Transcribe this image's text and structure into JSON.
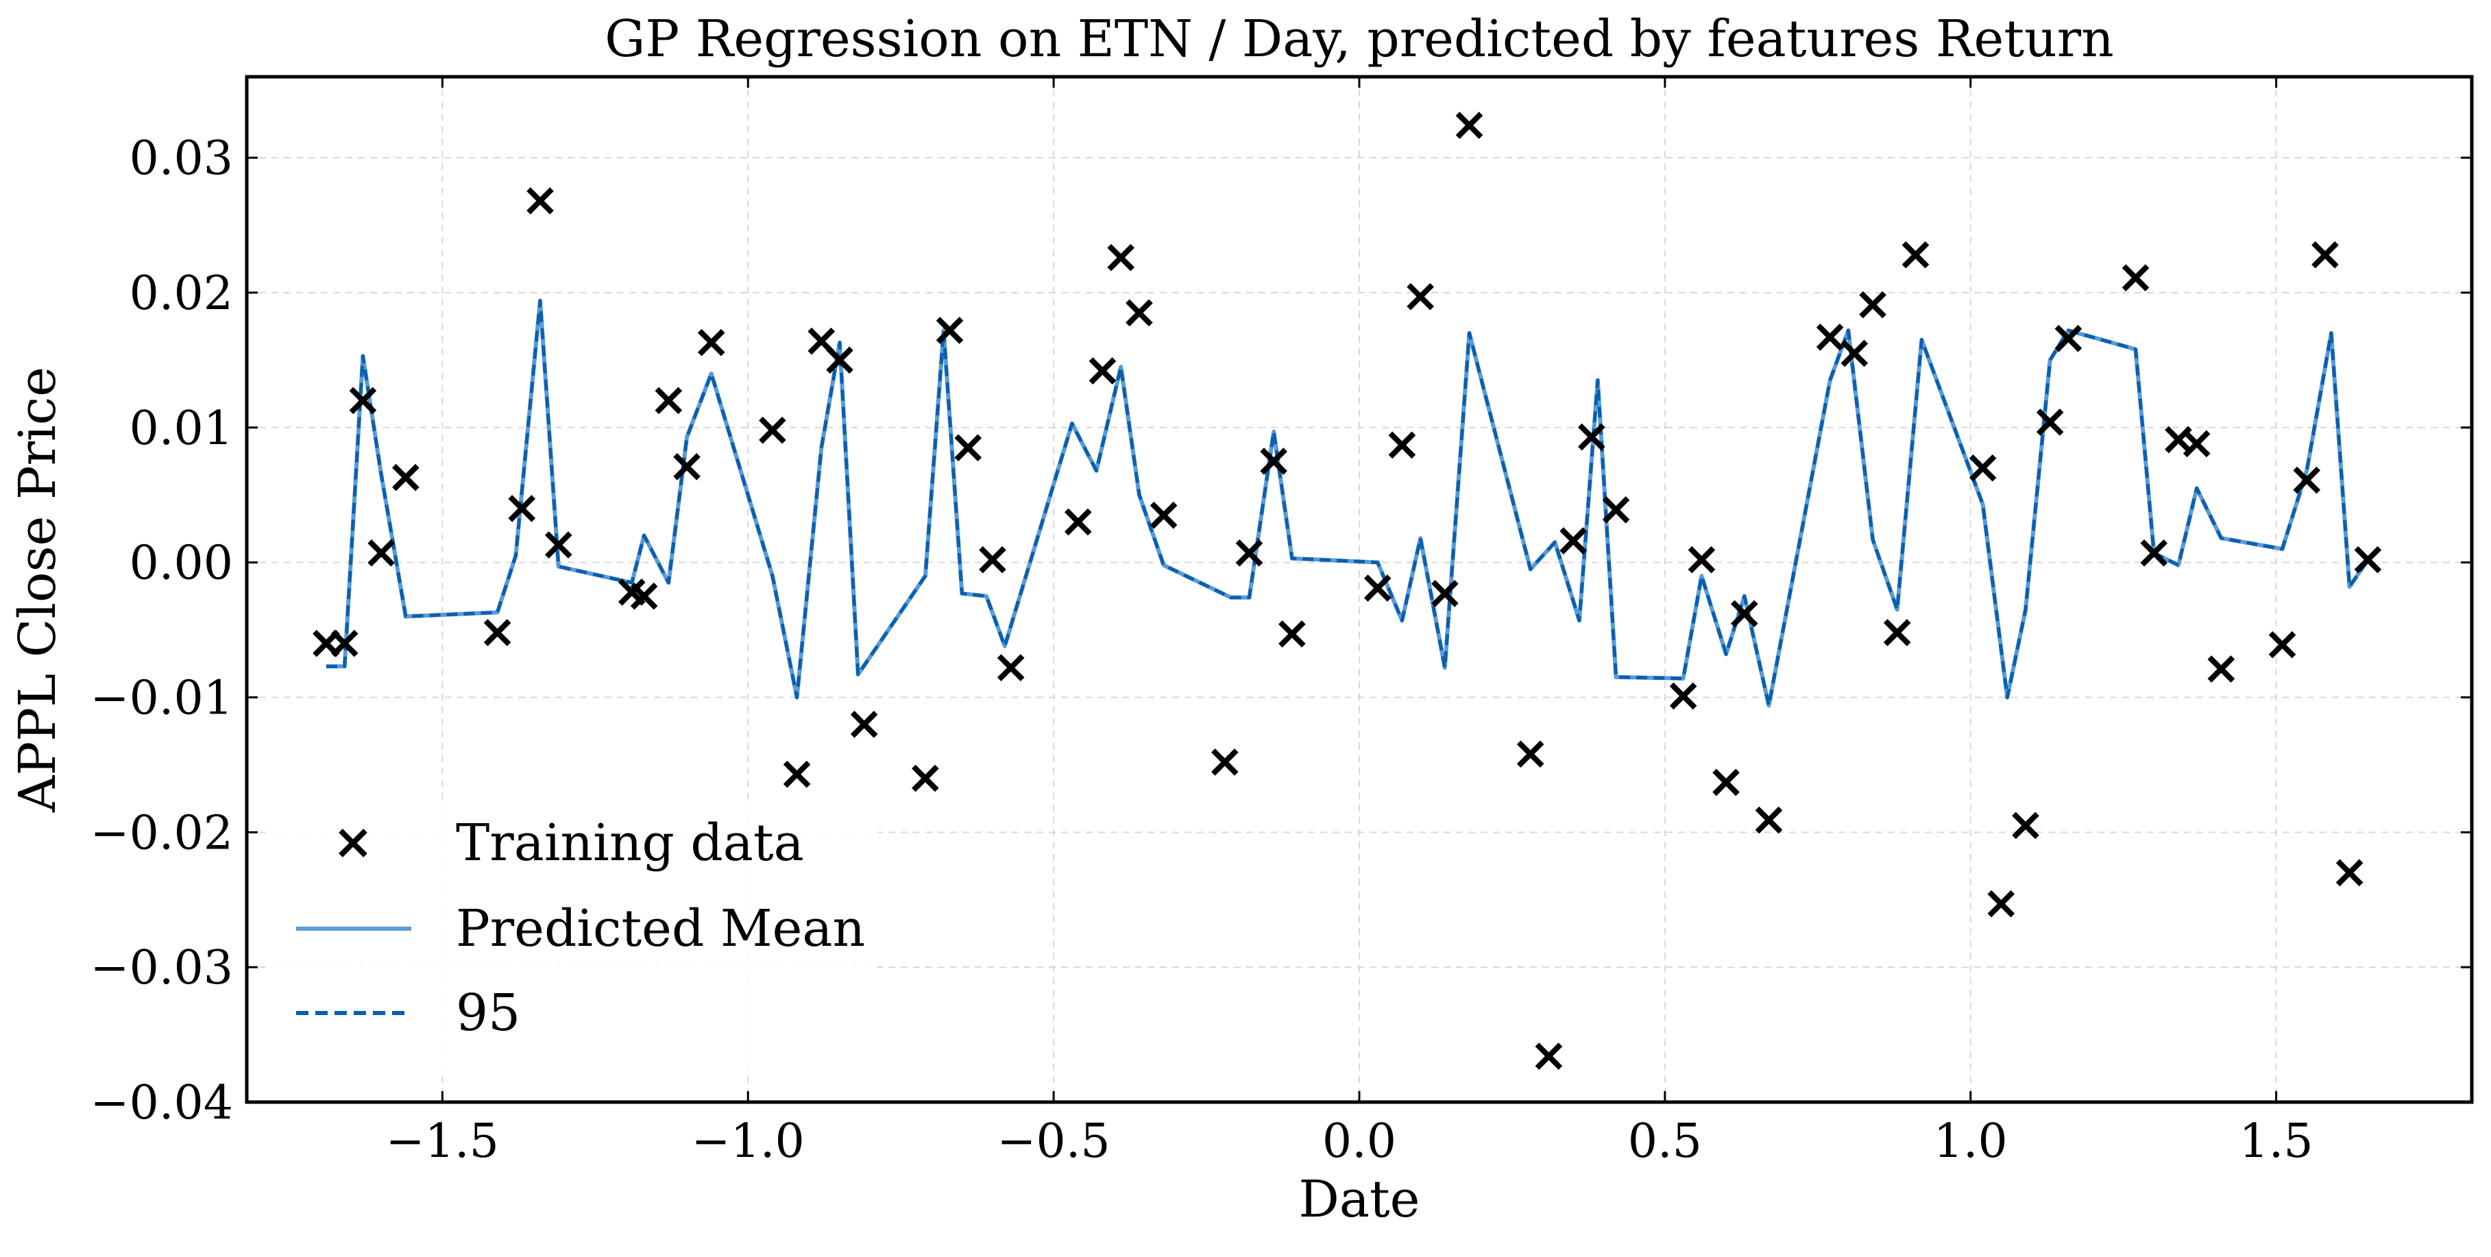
{
  "chart_data": {
    "type": "line",
    "title": "GP Regression on ETN / Day, predicted by features Return",
    "xlabel": "Date",
    "ylabel": "APPL Close Price",
    "xlim": [
      -1.82,
      1.82
    ],
    "ylim": [
      -0.04,
      0.036
    ],
    "xticks": [
      -1.5,
      -1.0,
      -0.5,
      0.0,
      0.5,
      1.0,
      1.5
    ],
    "xtick_labels": [
      "−1.5",
      "−1.0",
      "−0.5",
      "0.0",
      "0.5",
      "1.0",
      "1.5"
    ],
    "yticks": [
      -0.04,
      -0.03,
      -0.02,
      -0.01,
      0.0,
      0.01,
      0.02,
      0.03
    ],
    "ytick_labels": [
      "−0.04",
      "−0.03",
      "−0.02",
      "−0.01",
      "0.00",
      "0.01",
      "0.02",
      "0.03"
    ],
    "grid": true,
    "legend_placement": "lower-left",
    "legend": [
      {
        "label": "Training data",
        "kind": "marker"
      },
      {
        "label": "Predicted Mean",
        "kind": "line"
      },
      {
        "label": "95",
        "kind": "dashed"
      }
    ],
    "colors": {
      "mean": "#5b9bd5",
      "band": "#0a5fb0",
      "marker": "#000000"
    },
    "training_data": {
      "x": [
        -1.69,
        -1.66,
        -1.63,
        -1.6,
        -1.56,
        -1.41,
        -1.37,
        -1.34,
        -1.31,
        -1.19,
        -1.17,
        -1.13,
        -1.1,
        -1.06,
        -0.96,
        -0.92,
        -0.88,
        -0.85,
        -0.81,
        -0.71,
        -0.67,
        -0.64,
        -0.6,
        -0.57,
        -0.46,
        -0.42,
        -0.39,
        -0.36,
        -0.32,
        -0.22,
        -0.18,
        -0.14,
        -0.11,
        0.03,
        0.07,
        0.1,
        0.14,
        0.18,
        0.28,
        0.31,
        0.35,
        0.38,
        0.42,
        0.53,
        0.56,
        0.6,
        0.63,
        0.67,
        0.77,
        0.81,
        0.84,
        0.88,
        0.91,
        1.02,
        1.05,
        1.09,
        1.13,
        1.16,
        1.27,
        1.3,
        1.34,
        1.37,
        1.41,
        1.51,
        1.55,
        1.58,
        1.62,
        1.65
      ],
      "y": [
        -0.006,
        -0.006,
        0.012,
        0.0007,
        0.0063,
        -0.0052,
        0.004,
        0.0268,
        0.0013,
        -0.0022,
        -0.0025,
        0.012,
        0.0071,
        0.0163,
        0.0098,
        -0.0157,
        0.0164,
        0.015,
        -0.012,
        -0.016,
        0.0172,
        0.0085,
        0.0002,
        -0.0078,
        0.003,
        0.0142,
        0.0226,
        0.0185,
        0.0035,
        -0.0148,
        0.0007,
        0.0075,
        -0.0053,
        -0.0019,
        0.0087,
        0.0197,
        -0.0023,
        0.0324,
        -0.0142,
        -0.0366,
        0.0016,
        0.0093,
        0.0039,
        -0.0099,
        0.0002,
        -0.0163,
        -0.0038,
        -0.0191,
        0.0167,
        0.0155,
        0.0191,
        -0.0052,
        0.0228,
        0.007,
        -0.0253,
        -0.0195,
        0.0104,
        0.0166,
        0.0211,
        0.0007,
        0.0091,
        0.0088,
        -0.0079,
        -0.0061,
        0.0061,
        0.0228,
        -0.023,
        0.0002
      ]
    },
    "series": [
      {
        "name": "Predicted Mean",
        "x": [
          -1.69,
          -1.66,
          -1.63,
          -1.6,
          -1.56,
          -1.41,
          -1.38,
          -1.34,
          -1.31,
          -1.19,
          -1.17,
          -1.13,
          -1.1,
          -1.06,
          -0.96,
          -0.92,
          -0.88,
          -0.85,
          -0.82,
          -0.71,
          -0.68,
          -0.65,
          -0.61,
          -0.58,
          -0.47,
          -0.43,
          -0.39,
          -0.36,
          -0.32,
          -0.21,
          -0.18,
          -0.14,
          -0.11,
          0.03,
          0.07,
          0.1,
          0.14,
          0.18,
          0.28,
          0.32,
          0.36,
          0.39,
          0.42,
          0.53,
          0.56,
          0.6,
          0.63,
          0.67,
          0.77,
          0.8,
          0.84,
          0.88,
          0.92,
          1.02,
          1.06,
          1.09,
          1.13,
          1.16,
          1.27,
          1.3,
          1.34,
          1.37,
          1.41,
          1.51,
          1.55,
          1.59,
          1.62,
          1.65
        ],
        "y": [
          -0.0077,
          -0.0077,
          0.0153,
          0.0065,
          -0.004,
          -0.0037,
          0.0005,
          0.0194,
          -0.0003,
          -0.0015,
          0.002,
          -0.0015,
          0.0093,
          0.014,
          -0.001,
          -0.01,
          0.0085,
          0.0163,
          -0.0083,
          -0.001,
          0.0172,
          -0.0023,
          -0.0025,
          -0.0062,
          0.0103,
          0.0068,
          0.0145,
          0.005,
          -0.0002,
          -0.0026,
          -0.0026,
          0.0097,
          0.0003,
          0.0,
          -0.0043,
          0.0018,
          -0.0078,
          0.017,
          -0.0005,
          0.0015,
          -0.0043,
          0.0135,
          -0.0085,
          -0.0086,
          -0.001,
          -0.0068,
          -0.0025,
          -0.0106,
          0.0135,
          0.0172,
          0.0017,
          -0.0035,
          0.0165,
          0.0043,
          -0.01,
          -0.0035,
          0.015,
          0.0172,
          0.0158,
          0.0007,
          -0.0002,
          0.0055,
          0.0018,
          0.001,
          0.0068,
          0.017,
          -0.0018,
          0.0002
        ]
      }
    ]
  }
}
